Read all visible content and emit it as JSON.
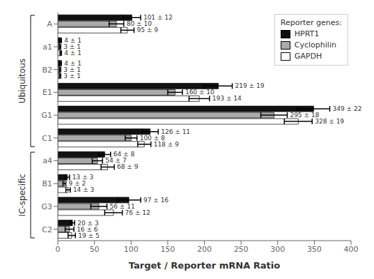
{
  "chart_data": {
    "type": "bar",
    "orientation": "horizontal",
    "xlabel": "Target / Reporter mRNA Ratio",
    "categories": [
      "A",
      "a1",
      "B2",
      "E1",
      "G1",
      "C1",
      "a4",
      "B1",
      "G3",
      "C2"
    ],
    "series": [
      {
        "name": "HPRT1",
        "color": "#111111",
        "values": [
          101,
          4,
          4,
          219,
          349,
          126,
          64,
          13,
          97,
          20
        ],
        "errors": [
          12,
          1,
          1,
          19,
          22,
          11,
          8,
          3,
          16,
          3
        ],
        "value_labels": [
          "101 ± 12",
          "4 ± 1",
          "4 ± 1",
          "219 ± 19",
          "349 ± 22",
          "126 ± 11",
          "64 ± 8",
          "13 ± 3",
          "97 ± 16",
          "20 ± 3"
        ]
      },
      {
        "name": "Cyclophilin",
        "color": "#aaaaaa",
        "values": [
          80,
          3,
          3,
          160,
          295,
          100,
          54,
          9,
          56,
          16
        ],
        "errors": [
          10,
          1,
          1,
          10,
          18,
          8,
          7,
          2,
          11,
          6
        ],
        "value_labels": [
          "80 ± 10",
          "3 ± 1",
          "3 ± 1",
          "160 ± 10",
          "295 ± 18",
          "100 ± 8",
          "54 ± 7",
          "9 ± 2",
          "56 ± 11",
          "16 ± 6"
        ]
      },
      {
        "name": "GAPDH",
        "color": "#ffffff",
        "values": [
          95,
          4,
          3,
          193,
          328,
          118,
          68,
          14,
          76,
          19
        ],
        "errors": [
          9,
          1,
          1,
          14,
          19,
          9,
          9,
          3,
          12,
          5
        ],
        "value_labels": [
          "95 ± 9",
          "4 ± 1",
          "3 ± 1",
          "193 ± 14",
          "328 ± 19",
          "118 ± 9",
          "68 ± 9",
          "14 ± 3",
          "76 ± 12",
          "19 ± 5"
        ]
      }
    ],
    "sections": [
      {
        "label": "Ubiquitous",
        "categories": [
          "A",
          "a1",
          "B2",
          "E1",
          "G1",
          "C1"
        ]
      },
      {
        "label": "IC-specific",
        "categories": [
          "a4",
          "B1",
          "G3",
          "C2"
        ]
      }
    ],
    "legend": "upper right",
    "legend_title": "Reporter genes:",
    "data_labels": true,
    "xlim": [
      0,
      400
    ],
    "xticks": [
      0,
      50,
      100,
      150,
      200,
      250,
      300,
      350,
      400
    ],
    "grid": false
  }
}
